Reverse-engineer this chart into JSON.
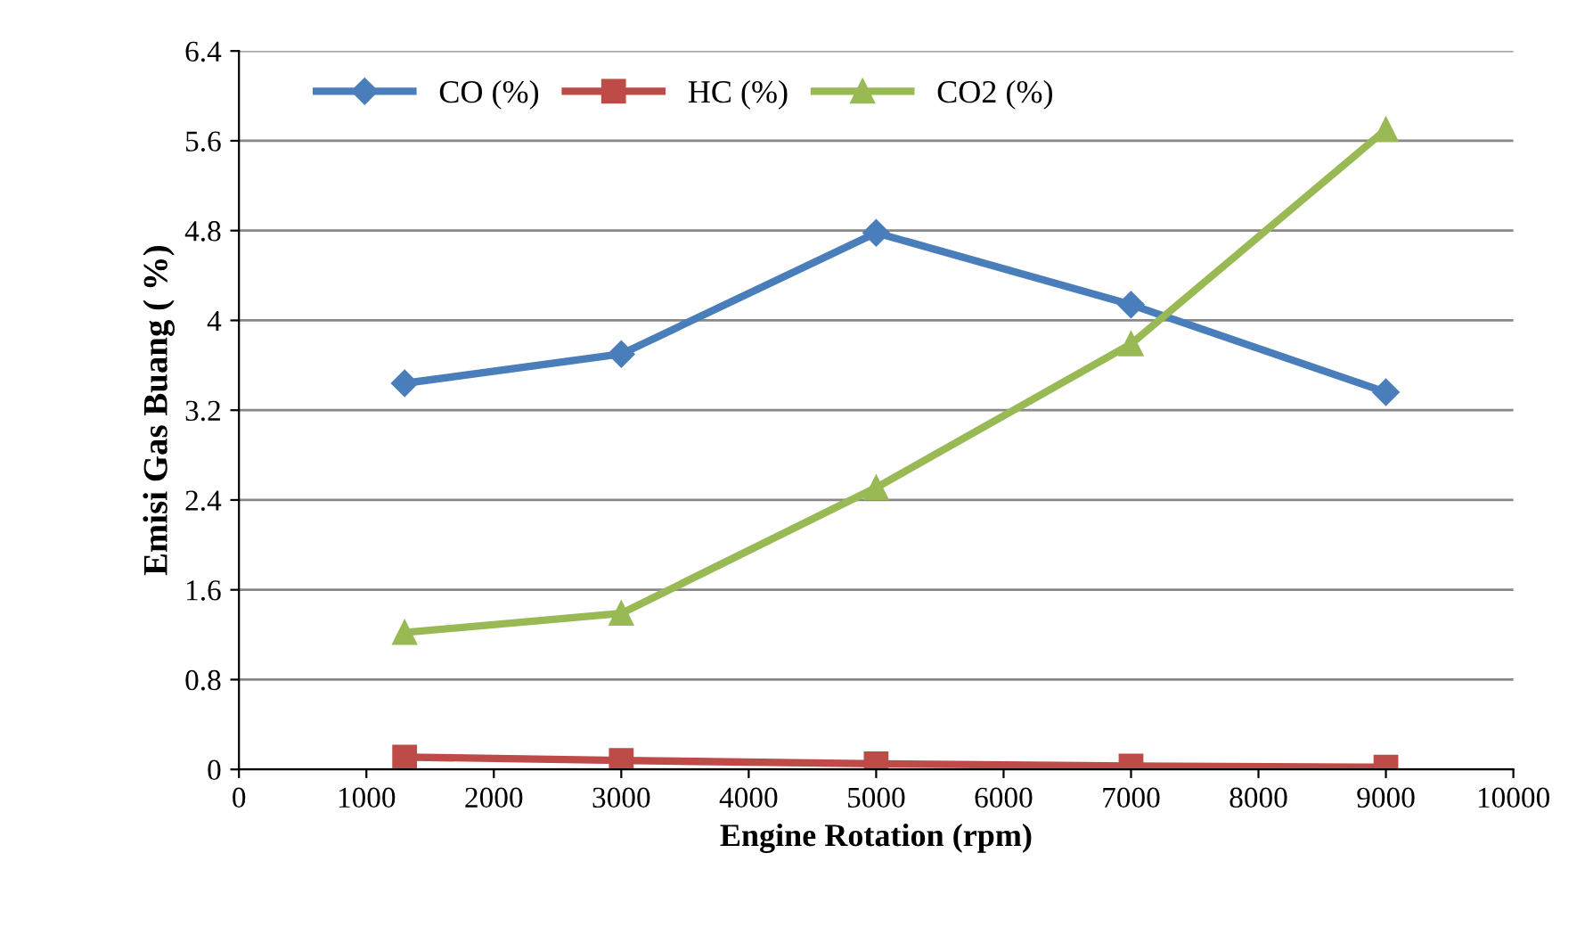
{
  "chart_data": {
    "type": "line",
    "xlabel": "Engine Rotation (rpm)",
    "ylabel": "Emisi Gas Buang ( %)",
    "x": [
      1300,
      3000,
      5000,
      7000,
      9000
    ],
    "series": [
      {
        "name": "CO (%)",
        "color": "#4a7ebb",
        "marker": "diamond",
        "values": [
          3.44,
          3.7,
          4.78,
          4.14,
          3.36
        ]
      },
      {
        "name": "HC (%)",
        "color": "#be4b48",
        "marker": "square",
        "values": [
          0.11,
          0.08,
          0.05,
          0.03,
          0.02
        ]
      },
      {
        "name": "CO2 (%)",
        "color": "#98b954",
        "marker": "triangle",
        "values": [
          1.22,
          1.39,
          2.51,
          3.79,
          5.7
        ]
      }
    ],
    "xlim": [
      0,
      10000
    ],
    "xticks": [
      0,
      1000,
      2000,
      3000,
      4000,
      5000,
      6000,
      7000,
      8000,
      9000,
      10000
    ],
    "ylim": [
      0,
      6.4
    ],
    "yticks": [
      0,
      0.8,
      1.6,
      2.4,
      {
        "value": 3.2,
        "label": "3.2"
      },
      4,
      4.8,
      5.6,
      6.4
    ],
    "grid": "y",
    "legend": "top",
    "line_style": "solid"
  }
}
